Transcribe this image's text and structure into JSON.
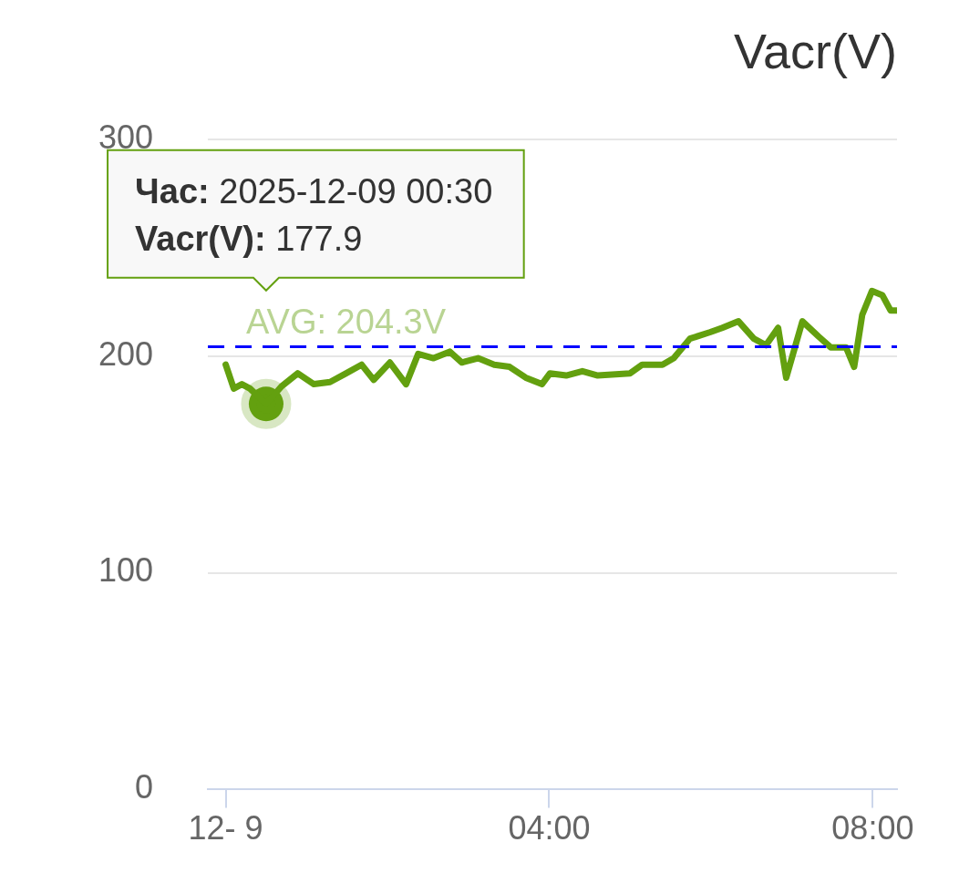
{
  "chart_data": {
    "type": "line",
    "title": "Vacr(V)",
    "series": [
      {
        "color": "#63a00f",
        "x": [
          0,
          0.1,
          0.2,
          0.3,
          0.5,
          0.69,
          0.89,
          1.09,
          1.29,
          1.49,
          1.68,
          1.83,
          2.03,
          2.23,
          2.38,
          2.57,
          2.77,
          2.92,
          3.12,
          3.32,
          3.51,
          3.71,
          3.91,
          4.01,
          4.21,
          4.41,
          4.6,
          5.0,
          5.15,
          5.4,
          5.54,
          5.74,
          5.99,
          6.14,
          6.34,
          6.53,
          6.68,
          6.83,
          6.93,
          7.13,
          7.33,
          7.48,
          7.67,
          7.77,
          7.87,
          7.99,
          8.12,
          8.22,
          8.29
        ],
        "values": [
          196,
          185,
          187,
          185,
          177.9,
          186,
          192,
          187,
          188,
          192,
          196,
          189,
          197,
          187,
          201,
          199,
          202,
          197,
          199,
          196,
          195,
          190,
          187,
          192,
          191,
          193,
          191,
          192,
          196,
          196,
          199,
          208,
          211,
          213,
          216,
          208,
          205,
          213,
          190,
          216,
          209,
          204,
          204,
          195,
          219,
          230,
          228,
          221,
          221
        ]
      },
      {
        "type": "scatter",
        "color": "#63a00f",
        "x": [
          0.5
        ],
        "values": [
          177.9
        ],
        "marker": "circle"
      }
    ],
    "xlim": [
      -0.22,
      8.3
    ],
    "xticks": [
      {
        "value": 0,
        "label": "12- 9"
      },
      {
        "value": 4,
        "label": "04:00"
      },
      {
        "value": 8,
        "label": "08:00"
      }
    ],
    "ylim": [
      0,
      300
    ],
    "yticks": [
      0,
      100,
      200,
      300
    ],
    "grid": "y",
    "legend": false,
    "marker": "none",
    "line_style": "solid",
    "ref_lines": [
      {
        "axis": "y",
        "value": 204.3,
        "label": "AVG: 204.3V",
        "color": "#0000ff",
        "line_style": "dashed"
      }
    ],
    "annotations": [
      "Час: 2025-12-09 00:30\nVacr(V): 177.9"
    ]
  }
}
